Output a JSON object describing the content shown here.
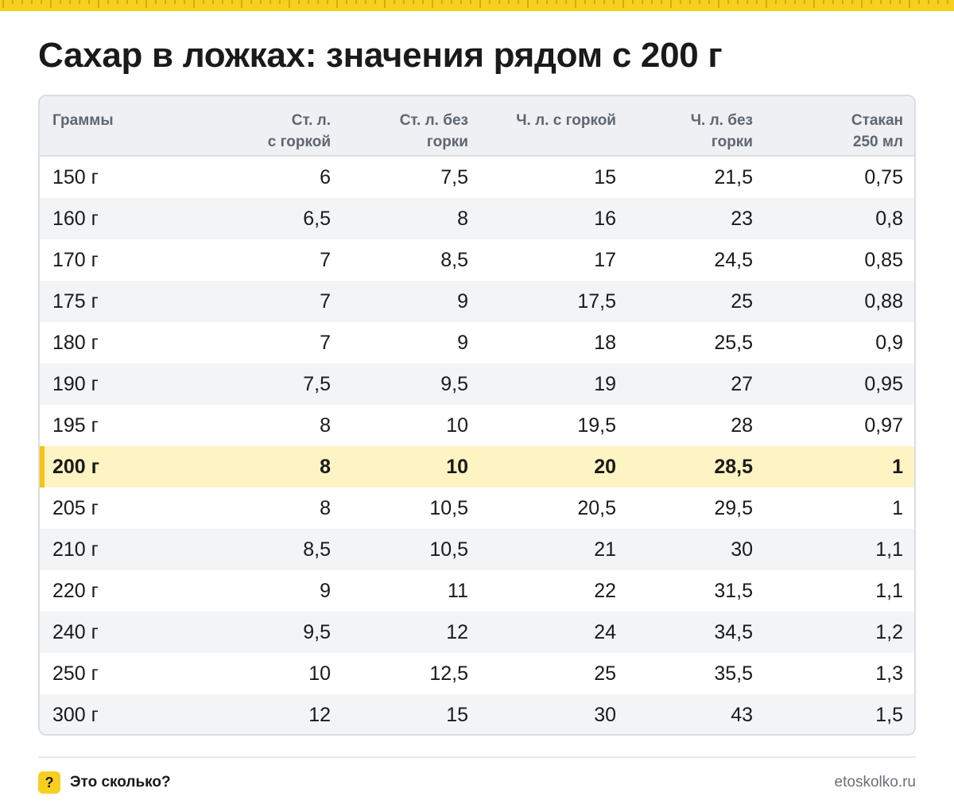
{
  "title": "Сахар в ложках: значения рядом с 200 г",
  "table": {
    "headers": [
      [
        "Граммы",
        ""
      ],
      [
        "Ст. л.",
        "с горкой"
      ],
      [
        "Ст. л. без",
        "горки"
      ],
      [
        "Ч. л. с горкой",
        ""
      ],
      [
        "Ч. л. без",
        "горки"
      ],
      [
        "Стакан",
        "250 мл"
      ]
    ],
    "rows": [
      [
        "150 г",
        "6",
        "7,5",
        "15",
        "21,5",
        "0,75"
      ],
      [
        "160 г",
        "6,5",
        "8",
        "16",
        "23",
        "0,8"
      ],
      [
        "170 г",
        "7",
        "8,5",
        "17",
        "24,5",
        "0,85"
      ],
      [
        "175 г",
        "7",
        "9",
        "17,5",
        "25",
        "0,88"
      ],
      [
        "180 г",
        "7",
        "9",
        "18",
        "25,5",
        "0,9"
      ],
      [
        "190 г",
        "7,5",
        "9,5",
        "19",
        "27",
        "0,95"
      ],
      [
        "195 г",
        "8",
        "10",
        "19,5",
        "28",
        "0,97"
      ],
      [
        "200 г",
        "8",
        "10",
        "20",
        "28,5",
        "1"
      ],
      [
        "205 г",
        "8",
        "10,5",
        "20,5",
        "29,5",
        "1"
      ],
      [
        "210 г",
        "8,5",
        "10,5",
        "21",
        "30",
        "1,1"
      ],
      [
        "220 г",
        "9",
        "11",
        "22",
        "31,5",
        "1,1"
      ],
      [
        "240 г",
        "9,5",
        "12",
        "24",
        "34,5",
        "1,2"
      ],
      [
        "250 г",
        "10",
        "12,5",
        "25",
        "35,5",
        "1,3"
      ],
      [
        "300 г",
        "12",
        "15",
        "30",
        "43",
        "1,5"
      ]
    ],
    "highlight_row": "200 г"
  },
  "footer": {
    "brand_icon_glyph": "?",
    "brand_name": "Это сколько?",
    "site": "etoskolko.ru"
  },
  "colors": {
    "accent_yellow": "#f7cf1f",
    "highlight_row_bg": "#fdf3c3",
    "header_bg": "#eef0f3",
    "zebra_bg": "#f3f4f6"
  }
}
